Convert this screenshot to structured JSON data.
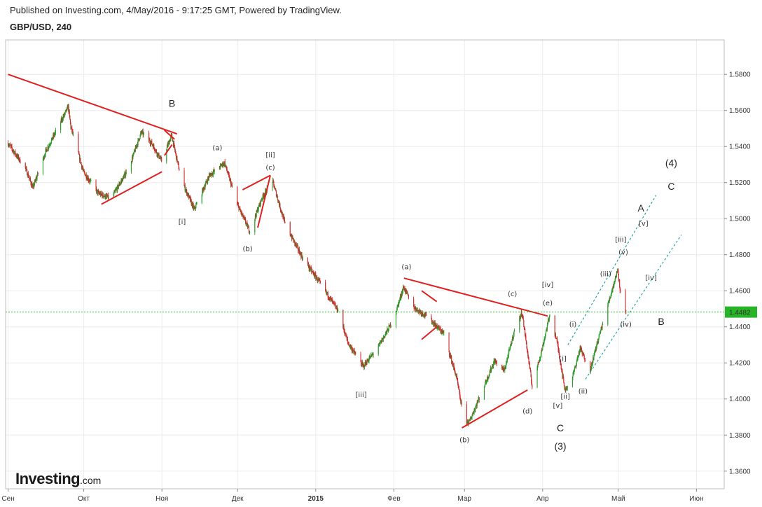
{
  "header": {
    "published": "Published on Investing.com, 4/May/2016 - 9:17:25 GMT, Powered by TradingView.",
    "symbol": "GBP/USD, 240"
  },
  "logo": {
    "main": "Investing",
    "suffix": ".com"
  },
  "colors": {
    "up": "#2a9a2a",
    "down": "#cc2a2a",
    "trend": "#e02020",
    "channel": "#27a39a",
    "current": "#27b427",
    "grid": "#ececec"
  },
  "chart_data": {
    "type": "candlestick",
    "symbol": "GBP/USD",
    "timeframe": "240",
    "ylim": [
      1.3502,
      1.5991
    ],
    "y_ticks": [
      "1.5800",
      "1.5600",
      "1.5400",
      "1.5200",
      "1.5000",
      "1.4800",
      "1.4600",
      "1.4400",
      "1.4200",
      "1.4000",
      "1.3800",
      "1.3600"
    ],
    "x_ticks": [
      "Сен",
      "Окт",
      "Ноя",
      "Дек",
      "2015",
      "Фев",
      "Мар",
      "Апр",
      "Май",
      "Июн"
    ],
    "current_price": "1.4482",
    "price_path": [
      {
        "date": "2014-09-01",
        "price": 1.542
      },
      {
        "date": "2014-09-08",
        "price": 1.528
      },
      {
        "date": "2014-09-11",
        "price": 1.517
      },
      {
        "date": "2014-09-16",
        "price": 1.537
      },
      {
        "date": "2014-09-20",
        "price": 1.548
      },
      {
        "date": "2014-09-25",
        "price": 1.562
      },
      {
        "date": "2014-09-26",
        "price": 1.551
      },
      {
        "date": "2014-10-01",
        "price": 1.526
      },
      {
        "date": "2014-10-07",
        "price": 1.514
      },
      {
        "date": "2014-10-12",
        "price": 1.511
      },
      {
        "date": "2014-10-19",
        "price": 1.528
      },
      {
        "date": "2014-10-24",
        "price": 1.548
      },
      {
        "date": "2014-10-28",
        "price": 1.542
      },
      {
        "date": "2014-11-01",
        "price": 1.532
      },
      {
        "date": "2014-11-05",
        "price": 1.546
      },
      {
        "date": "2014-11-09",
        "price": 1.521
      },
      {
        "date": "2014-11-14",
        "price": 1.505
      },
      {
        "date": "2014-11-20",
        "price": 1.524
      },
      {
        "date": "2014-11-26",
        "price": 1.531
      },
      {
        "date": "2014-12-01",
        "price": 1.508
      },
      {
        "date": "2014-12-06",
        "price": 1.493
      },
      {
        "date": "2014-12-11",
        "price": 1.512
      },
      {
        "date": "2014-12-15",
        "price": 1.521
      },
      {
        "date": "2014-12-20",
        "price": 1.497
      },
      {
        "date": "2014-12-27",
        "price": 1.478
      },
      {
        "date": "2015-01-02",
        "price": 1.466
      },
      {
        "date": "2015-01-10",
        "price": 1.449
      },
      {
        "date": "2015-01-14",
        "price": 1.431
      },
      {
        "date": "2015-01-20",
        "price": 1.418
      },
      {
        "date": "2015-01-26",
        "price": 1.429
      },
      {
        "date": "2015-02-01",
        "price": 1.444
      },
      {
        "date": "2015-02-05",
        "price": 1.462
      },
      {
        "date": "2015-02-09",
        "price": 1.451
      },
      {
        "date": "2015-02-15",
        "price": 1.445
      },
      {
        "date": "2015-02-21",
        "price": 1.436
      },
      {
        "date": "2015-02-26",
        "price": 1.412
      },
      {
        "date": "2015-03-01",
        "price": 1.388
      },
      {
        "date": "2015-03-03",
        "price": 1.387
      },
      {
        "date": "2015-03-08",
        "price": 1.404
      },
      {
        "date": "2015-03-13",
        "price": 1.421
      },
      {
        "date": "2015-03-17",
        "price": 1.416
      },
      {
        "date": "2015-03-21",
        "price": 1.438
      },
      {
        "date": "2015-03-24",
        "price": 1.448
      },
      {
        "date": "2015-03-28",
        "price": 1.407
      },
      {
        "date": "2015-04-01",
        "price": 1.428
      },
      {
        "date": "2015-04-04",
        "price": 1.447
      },
      {
        "date": "2015-04-07",
        "price": 1.431
      },
      {
        "date": "2015-04-10",
        "price": 1.405
      },
      {
        "date": "2015-04-13",
        "price": 1.412
      },
      {
        "date": "2015-04-16",
        "price": 1.428
      },
      {
        "date": "2015-04-20",
        "price": 1.416
      },
      {
        "date": "2015-04-23",
        "price": 1.432
      },
      {
        "date": "2015-04-26",
        "price": 1.447
      },
      {
        "date": "2015-04-29",
        "price": 1.462
      },
      {
        "date": "2015-05-01",
        "price": 1.472
      },
      {
        "date": "2015-05-02",
        "price": 1.459
      },
      {
        "date": "2015-05-04",
        "price": 1.4482
      }
    ],
    "trend_lines": [
      {
        "from": {
          "date": "2014-09-01",
          "price": 1.58
        },
        "to": {
          "date": "2014-11-07",
          "price": 1.547
        }
      },
      {
        "from": {
          "date": "2014-10-08",
          "price": 1.508
        },
        "to": {
          "date": "2014-11-01",
          "price": 1.526
        }
      },
      {
        "from": {
          "date": "2014-11-02",
          "price": 1.549
        },
        "to": {
          "date": "2014-11-06",
          "price": 1.544
        }
      },
      {
        "from": {
          "date": "2014-11-02",
          "price": 1.535
        },
        "to": {
          "date": "2014-11-05",
          "price": 1.541
        }
      },
      {
        "from": {
          "date": "2014-12-03",
          "price": 1.516
        },
        "to": {
          "date": "2014-12-14",
          "price": 1.524
        }
      },
      {
        "from": {
          "date": "2014-12-09",
          "price": 1.495
        },
        "to": {
          "date": "2014-12-14",
          "price": 1.524
        }
      },
      {
        "from": {
          "date": "2015-02-05",
          "price": 1.467
        },
        "to": {
          "date": "2015-04-03",
          "price": 1.446
        }
      },
      {
        "from": {
          "date": "2015-02-12",
          "price": 1.46
        },
        "to": {
          "date": "2015-02-18",
          "price": 1.454
        }
      },
      {
        "from": {
          "date": "2015-02-12",
          "price": 1.433
        },
        "to": {
          "date": "2015-02-18",
          "price": 1.44
        }
      },
      {
        "from": {
          "date": "2015-02-28",
          "price": 1.384
        },
        "to": {
          "date": "2015-03-26",
          "price": 1.405
        }
      }
    ],
    "channel_lines": [
      {
        "from": {
          "date": "2015-04-11",
          "price": 1.43
        },
        "to": {
          "date": "2015-05-16",
          "price": 1.513
        }
      },
      {
        "from": {
          "date": "2015-04-18",
          "price": 1.411
        },
        "to": {
          "date": "2015-05-26",
          "price": 1.491
        }
      }
    ],
    "annotations": [
      {
        "text": "B",
        "date": "2014-11-05",
        "price": 1.562,
        "size": "big"
      },
      {
        "text": "(a)",
        "date": "2014-11-23",
        "price": 1.538,
        "size": "small"
      },
      {
        "text": "[ii]",
        "date": "2014-12-14",
        "price": 1.534,
        "size": "small"
      },
      {
        "text": "(c)",
        "date": "2014-12-14",
        "price": 1.527,
        "size": "small"
      },
      {
        "text": "[i]",
        "date": "2014-11-09",
        "price": 1.497,
        "size": "small"
      },
      {
        "text": "(b)",
        "date": "2014-12-05",
        "price": 1.482,
        "size": "small"
      },
      {
        "text": "[iii]",
        "date": "2015-01-19",
        "price": 1.401,
        "size": "small"
      },
      {
        "text": "(a)",
        "date": "2015-02-06",
        "price": 1.472,
        "size": "small"
      },
      {
        "text": "(c)",
        "date": "2015-03-20",
        "price": 1.457,
        "size": "small"
      },
      {
        "text": "[iv]",
        "date": "2015-04-03",
        "price": 1.462,
        "size": "small"
      },
      {
        "text": "(e)",
        "date": "2015-04-03",
        "price": 1.452,
        "size": "small"
      },
      {
        "text": "(d)",
        "date": "2015-03-26",
        "price": 1.392,
        "size": "small"
      },
      {
        "text": "(b)",
        "date": "2015-03-01",
        "price": 1.376,
        "size": "small"
      },
      {
        "text": "C",
        "date": "2015-04-08",
        "price": 1.382,
        "size": "big"
      },
      {
        "text": "(3)",
        "date": "2015-04-08",
        "price": 1.372,
        "size": "big"
      },
      {
        "text": "[i]",
        "date": "2015-04-09",
        "price": 1.421,
        "size": "small"
      },
      {
        "text": "[ii]",
        "date": "2015-04-10",
        "price": 1.4,
        "size": "small"
      },
      {
        "text": "[v]",
        "date": "2015-04-07",
        "price": 1.395,
        "size": "small"
      },
      {
        "text": "(i)",
        "date": "2015-04-13",
        "price": 1.44,
        "size": "small"
      },
      {
        "text": "(ii)",
        "date": "2015-04-17",
        "price": 1.403,
        "size": "small"
      },
      {
        "text": "(iii)",
        "date": "2015-04-26",
        "price": 1.468,
        "size": "small"
      },
      {
        "text": "[iii]",
        "date": "2015-05-02",
        "price": 1.487,
        "size": "small"
      },
      {
        "text": "(v)",
        "date": "2015-05-03",
        "price": 1.48,
        "size": "small"
      },
      {
        "text": "(iv)",
        "date": "2015-05-04",
        "price": 1.44,
        "size": "small"
      },
      {
        "text": "[iv]",
        "date": "2015-05-14",
        "price": 1.466,
        "size": "small"
      },
      {
        "text": "[v]",
        "date": "2015-05-11",
        "price": 1.496,
        "size": "small"
      },
      {
        "text": "A",
        "date": "2015-05-10",
        "price": 1.504,
        "size": "big"
      },
      {
        "text": "(4)",
        "date": "2015-05-22",
        "price": 1.529,
        "size": "big"
      },
      {
        "text": "C",
        "date": "2015-05-22",
        "price": 1.516,
        "size": "big"
      },
      {
        "text": "B",
        "date": "2015-05-18",
        "price": 1.441,
        "size": "big"
      }
    ]
  }
}
